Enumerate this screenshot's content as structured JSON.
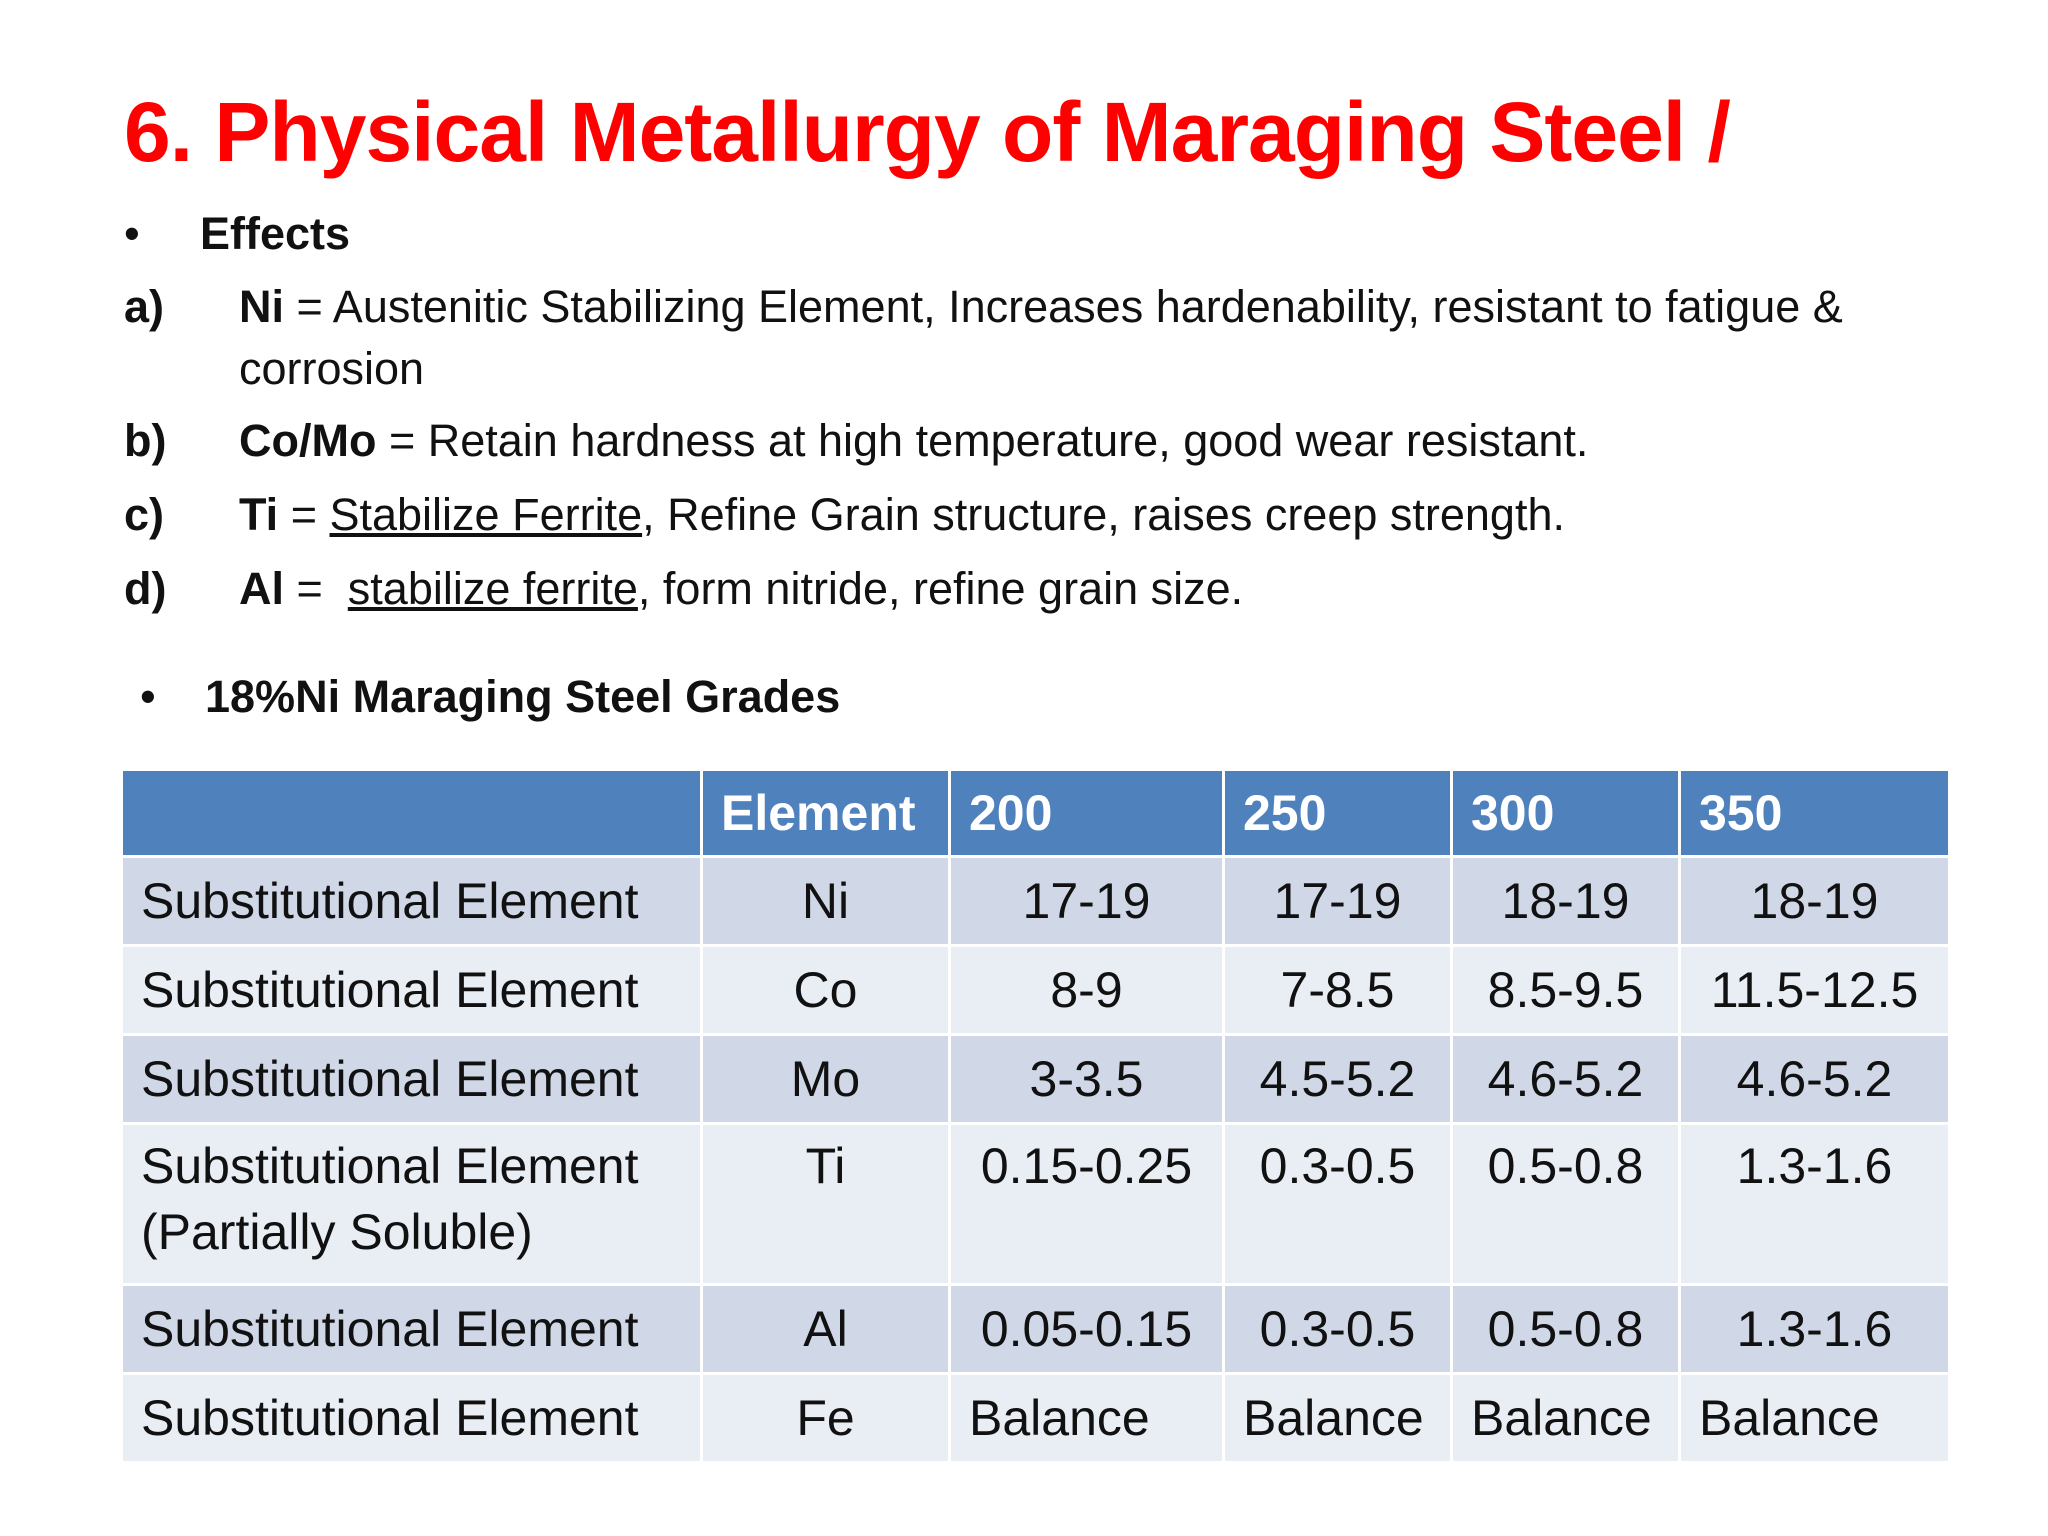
{
  "title": "6. Physical Metallurgy of Maraging Steel /",
  "colors": {
    "title": "#ff0000",
    "table_header": "#4f81bd",
    "row_odd": "#d0d8e8",
    "row_even": "#e9edf4"
  },
  "effects": {
    "bullet": "•",
    "heading": "Effects",
    "items": [
      {
        "marker": "a)",
        "term": "Ni",
        "text": " = Austenitic Stabilizing Element, Increases hardenability, resistant to fatigue & corrosion"
      },
      {
        "marker": "b)",
        "term": "Co/Mo",
        "text": " = Retain hardness at high temperature, good wear resistant."
      },
      {
        "marker": "c)",
        "term": "Ti",
        "pre": " = ",
        "underlined": "Stabilize Ferrite",
        "rest": ", Refine Grain structure, raises creep strength."
      },
      {
        "marker": "d)",
        "term": "Al",
        "pre": " =  ",
        "underlined": "stabilize ferrite",
        "rest": ", form nitride, refine grain size."
      }
    ]
  },
  "grades": {
    "bullet": "•",
    "heading": "18%Ni Maraging Steel Grades"
  },
  "table": {
    "headers": [
      "",
      "Element",
      "200",
      "250",
      "300",
      "350"
    ],
    "rows": [
      {
        "desc": "Substitutional Element",
        "element": "Ni",
        "v200": "17-19",
        "v250": "17-19",
        "v300": "18-19",
        "v350": "18-19"
      },
      {
        "desc": "Substitutional Element",
        "element": "Co",
        "v200": "8-9",
        "v250": "7-8.5",
        "v300": "8.5-9.5",
        "v350": "11.5-12.5"
      },
      {
        "desc": "Substitutional Element",
        "element": "Mo",
        "v200": "3-3.5",
        "v250": "4.5-5.2",
        "v300": "4.6-5.2",
        "v350": "4.6-5.2"
      },
      {
        "desc": "Substitutional Element",
        "desc2": "(Partially Soluble)",
        "element": "Ti",
        "v200": "0.15-0.25",
        "v250": "0.3-0.5",
        "v300": "0.5-0.8",
        "v350": "1.3-1.6"
      },
      {
        "desc": "Substitutional Element",
        "element": "Al",
        "v200": "0.05-0.15",
        "v250": "0.3-0.5",
        "v300": "0.5-0.8",
        "v350": "1.3-1.6"
      },
      {
        "desc": "Substitutional Element",
        "element": "Fe",
        "v200": "Balance",
        "v250": "Balance",
        "v300": "Balance",
        "v350": "Balance"
      }
    ]
  }
}
